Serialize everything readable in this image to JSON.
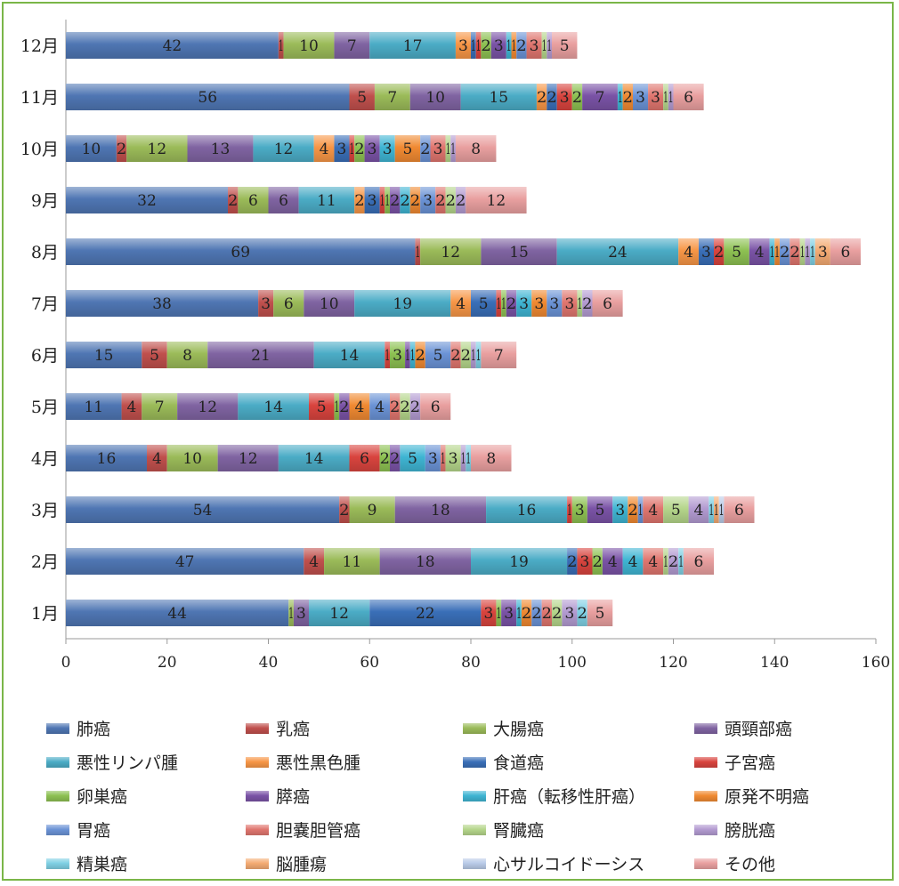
{
  "chart_data": {
    "type": "bar",
    "orientation": "horizontal",
    "stacked": true,
    "xlim": [
      0,
      160
    ],
    "xticks": [
      0,
      20,
      40,
      60,
      80,
      100,
      120,
      140,
      160
    ],
    "grid": false,
    "legend_position": "bottom",
    "categories": [
      "1月",
      "2月",
      "3月",
      "4月",
      "5月",
      "6月",
      "7月",
      "8月",
      "9月",
      "10月",
      "11月",
      "12月"
    ],
    "series": [
      {
        "name": "肺癌",
        "color": "#4f76b3",
        "values": [
          44,
          47,
          54,
          16,
          11,
          15,
          38,
          69,
          32,
          10,
          56,
          42
        ]
      },
      {
        "name": "乳癌",
        "color": "#c0504d",
        "values": [
          0,
          4,
          2,
          4,
          4,
          5,
          3,
          1,
          2,
          2,
          5,
          1
        ]
      },
      {
        "name": "大腸癌",
        "color": "#9bbb59",
        "values": [
          1,
          11,
          9,
          10,
          7,
          8,
          6,
          12,
          6,
          12,
          7,
          10
        ]
      },
      {
        "name": "頭頸部癌",
        "color": "#8064a2",
        "values": [
          3,
          18,
          18,
          12,
          12,
          21,
          10,
          15,
          6,
          13,
          10,
          7
        ]
      },
      {
        "name": "悪性リンパ腫",
        "color": "#4bacc6",
        "values": [
          12,
          19,
          16,
          14,
          14,
          14,
          19,
          24,
          11,
          12,
          15,
          17
        ]
      },
      {
        "name": "悪性黒色腫",
        "color": "#f79646",
        "values": [
          0,
          0,
          0,
          0,
          0,
          0,
          4,
          4,
          2,
          4,
          2,
          3
        ]
      },
      {
        "name": "食道癌",
        "color": "#3a6fb8",
        "values": [
          22,
          2,
          0,
          0,
          0,
          0,
          5,
          3,
          3,
          3,
          2,
          1
        ]
      },
      {
        "name": "子宮癌",
        "color": "#d9443e",
        "values": [
          3,
          3,
          1,
          6,
          5,
          1,
          1,
          2,
          1,
          1,
          3,
          1
        ]
      },
      {
        "name": "卵巣癌",
        "color": "#8dc152",
        "values": [
          1,
          2,
          3,
          2,
          1,
          3,
          1,
          5,
          1,
          2,
          2,
          2
        ]
      },
      {
        "name": "膵癌",
        "color": "#7a53a6",
        "values": [
          3,
          4,
          5,
          2,
          2,
          1,
          2,
          4,
          2,
          3,
          7,
          3
        ]
      },
      {
        "name": "肝癌（転移性肝癌）",
        "color": "#3fb5d3",
        "values": [
          1,
          4,
          3,
          5,
          0,
          1,
          3,
          1,
          2,
          3,
          1,
          1
        ]
      },
      {
        "name": "原発不明癌",
        "color": "#f08a32",
        "values": [
          2,
          0,
          2,
          0,
          4,
          2,
          3,
          1,
          2,
          5,
          2,
          1
        ]
      },
      {
        "name": "胃癌",
        "color": "#6b93d6",
        "values": [
          2,
          0,
          1,
          3,
          4,
          5,
          3,
          2,
          3,
          2,
          3,
          2
        ]
      },
      {
        "name": "胆嚢胆管癌",
        "color": "#e0766f",
        "values": [
          2,
          4,
          4,
          1,
          2,
          2,
          3,
          2,
          2,
          3,
          3,
          3
        ]
      },
      {
        "name": "腎臓癌",
        "color": "#b5d68b",
        "values": [
          2,
          1,
          5,
          3,
          2,
          2,
          1,
          1,
          2,
          1,
          1,
          1
        ]
      },
      {
        "name": "膀胱癌",
        "color": "#b39bd1",
        "values": [
          3,
          2,
          4,
          1,
          2,
          1,
          2,
          1,
          2,
          1,
          1,
          1
        ]
      },
      {
        "name": "精巣癌",
        "color": "#7fd0e4",
        "values": [
          2,
          1,
          1,
          1,
          0,
          1,
          0,
          1,
          0,
          0,
          0,
          0
        ]
      },
      {
        "name": "脳腫瘍",
        "color": "#f4ab73",
        "values": [
          0,
          0,
          1,
          0,
          0,
          0,
          0,
          3,
          0,
          0,
          0,
          0
        ]
      },
      {
        "name": "心サルコイドーシス",
        "color": "#b9cbe8",
        "values": [
          0,
          0,
          1,
          0,
          0,
          0,
          0,
          0,
          0,
          0,
          0,
          0
        ]
      },
      {
        "name": "その他",
        "color": "#e9a0a0",
        "values": [
          5,
          6,
          6,
          8,
          6,
          7,
          6,
          6,
          12,
          8,
          6,
          5
        ]
      }
    ]
  }
}
